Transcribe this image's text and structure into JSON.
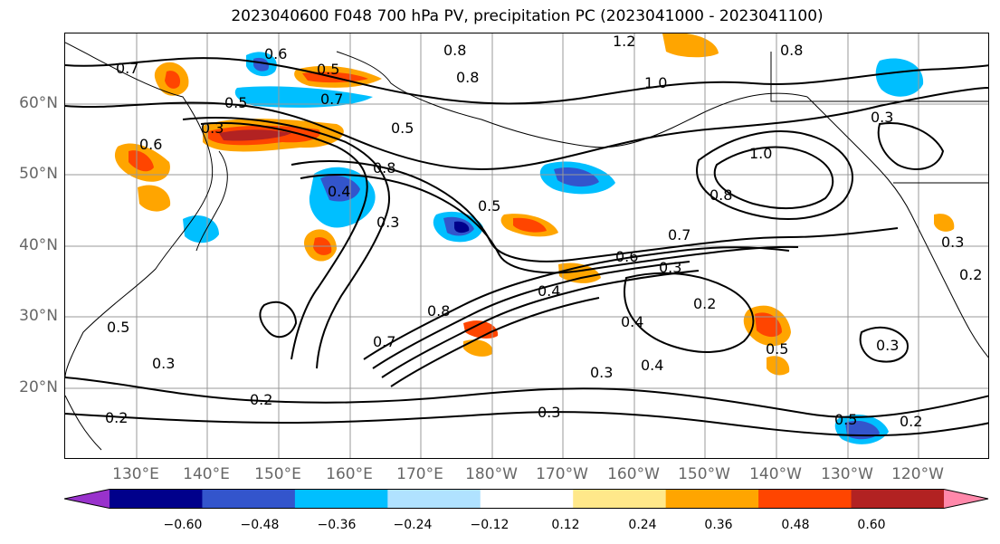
{
  "title": "2023040600 F048 700 hPa PV, precipitation PC (2023041000 - 2023041100)",
  "lat_labels": [
    "60°N",
    "50°N",
    "40°N",
    "30°N",
    "20°N"
  ],
  "lon_labels": [
    "130°E",
    "140°E",
    "150°E",
    "160°E",
    "170°E",
    "180°W",
    "170°W",
    "160°W",
    "150°W",
    "140°W",
    "130°W",
    "120°W"
  ],
  "contour_labels": [
    "0.7",
    "0.6",
    "0.5",
    "0.8",
    "0.8",
    "1.2",
    "1.0",
    "0.8",
    "0.5",
    "0.7",
    "0.5",
    "0.6",
    "0.3",
    "0.8",
    "0.4",
    "0.3",
    "1.0",
    "0.5",
    "0.8",
    "0.3",
    "0.6",
    "0.7",
    "0.4",
    "0.3",
    "0.2",
    "0.8",
    "0.7",
    "0.5",
    "0.4",
    "0.4",
    "0.3",
    "0.5",
    "0.3",
    "0.2",
    "0.2",
    "0.3",
    "0.5",
    "0.2",
    "0.3",
    "0.3",
    "0.2"
  ],
  "colorbar": {
    "colors": [
      "#9932cc",
      "#00008b",
      "#3355cc",
      "#00bfff",
      "#b0e2ff",
      "#ffffff",
      "#ffe88a",
      "#ffa500",
      "#ff4500",
      "#b22222",
      "#ff88aa"
    ],
    "ticks": [
      "−0.60",
      "−0.48",
      "−0.36",
      "−0.24",
      "−0.12",
      "0.12",
      "0.24",
      "0.36",
      "0.48",
      "0.60"
    ]
  },
  "style": {
    "contour_color": "#000000",
    "coast_color": "#000000",
    "grid_color": "#999999",
    "axis_label_color": "#666666"
  }
}
